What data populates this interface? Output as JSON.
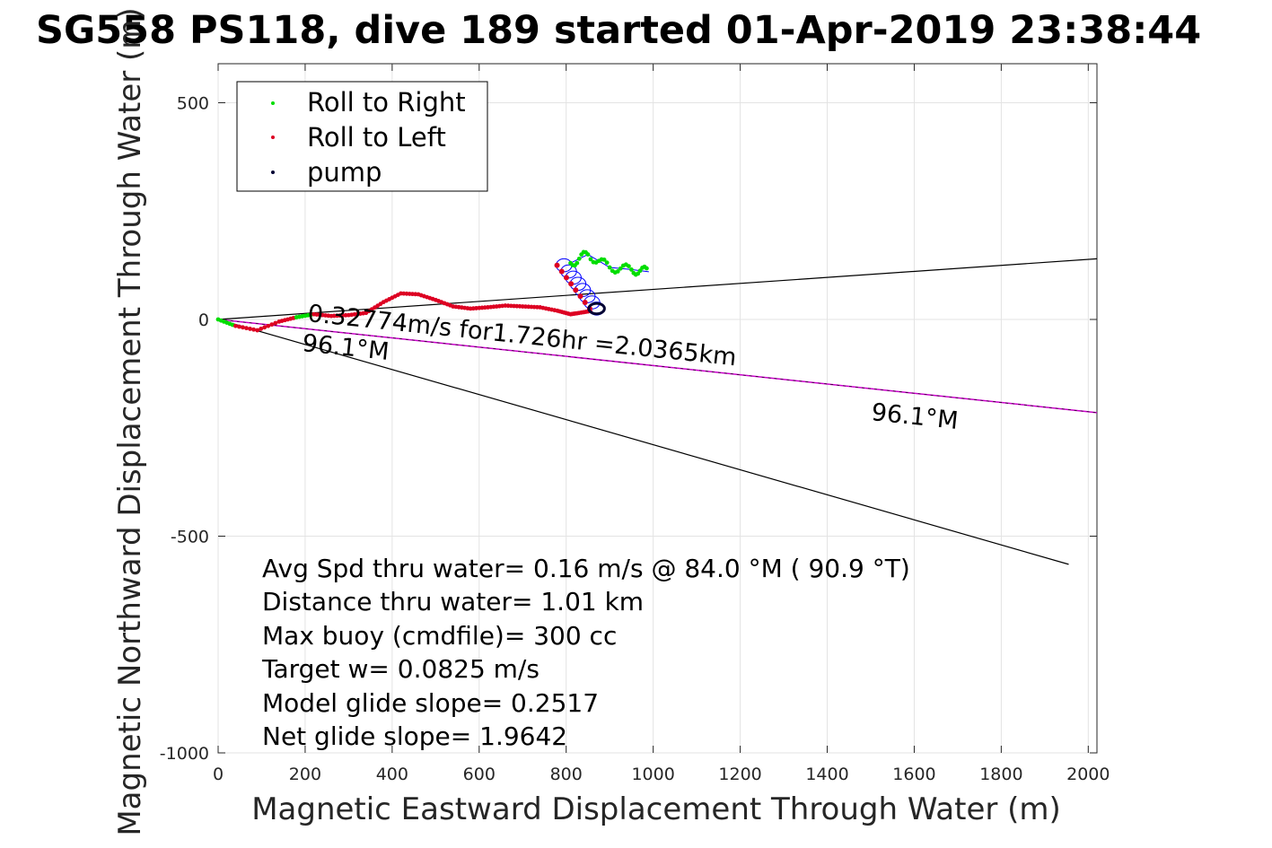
{
  "title": "SG558 PS118, dive 189 started 01-Apr-2019 23:38:44",
  "chart_data": {
    "type": "scatter",
    "xlabel": "Magnetic Eastward Displacement Through Water (m)",
    "ylabel": "Magnetic Northward Displacement Through Water (m)",
    "xlim": [
      0,
      2020
    ],
    "ylim": [
      -1000,
      590
    ],
    "xticks": [
      0,
      200,
      400,
      600,
      800,
      1000,
      1200,
      1400,
      1600,
      1800,
      2000
    ],
    "yticks": [
      -1000,
      -500,
      0,
      500
    ],
    "grid": true,
    "legend_position": "top-left",
    "colors": {
      "roll_right": "#00dd00",
      "roll_left": "#dd0022",
      "pump": "#000033",
      "track": "#0000ff",
      "current": "#cc00cc",
      "reference": "#000000"
    },
    "legend": [
      "Roll to Right",
      "Roll to Left",
      "pump"
    ],
    "track": [
      [
        0,
        0
      ],
      [
        40,
        -15
      ],
      [
        90,
        -25
      ],
      [
        140,
        -5
      ],
      [
        180,
        5
      ],
      [
        220,
        12
      ],
      [
        260,
        8
      ],
      [
        300,
        10
      ],
      [
        340,
        15
      ],
      [
        380,
        40
      ],
      [
        420,
        60
      ],
      [
        460,
        58
      ],
      [
        500,
        45
      ],
      [
        540,
        30
      ],
      [
        580,
        25
      ],
      [
        620,
        28
      ],
      [
        660,
        32
      ],
      [
        700,
        30
      ],
      [
        740,
        28
      ],
      [
        780,
        20
      ],
      [
        810,
        12
      ],
      [
        830,
        15
      ],
      [
        860,
        20
      ]
    ],
    "loops": {
      "start": [
        795,
        125
      ],
      "end": [
        870,
        25
      ],
      "count": 8,
      "radius": 20
    },
    "tail": [
      [
        810,
        130
      ],
      [
        850,
        150
      ],
      [
        900,
        120
      ],
      [
        950,
        115
      ],
      [
        990,
        110
      ]
    ],
    "reference_lines": [
      {
        "x": [
          0,
          2020
        ],
        "y": [
          0,
          140
        ]
      },
      {
        "x": [
          0,
          1955
        ],
        "y": [
          0,
          -565
        ]
      }
    ],
    "current_line": {
      "x": [
        0,
        2020
      ],
      "y": [
        0,
        -215
      ]
    },
    "annotations": {
      "speed": "0.32774m/s for1.726hr =2.0365km",
      "heading_near": "96.1°M",
      "heading_far": "96.1°M"
    }
  },
  "stats": [
    "Avg Spd thru water=  0.16 m/s @  84.0 °M ( 90.9 °T)",
    "Distance thru water=  1.01 km",
    "Max buoy (cmdfile)= 300 cc",
    "Target w= 0.0825 m/s",
    "Model glide slope= 0.2517",
    "Net glide slope= 1.9642"
  ]
}
